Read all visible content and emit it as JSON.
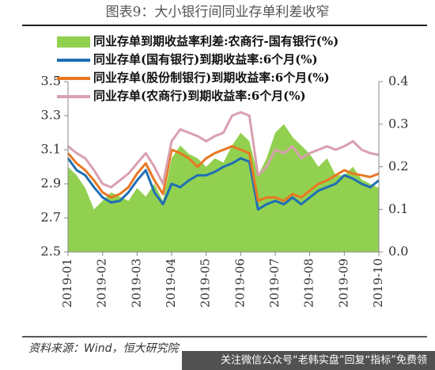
{
  "chart_data": {
    "type": "line",
    "title": "图表9：大小银行间同业存单利差收窄",
    "source": "资料来源：Wind，恒大研究院",
    "watermark": "关注微信公众号“老韩实盘”回复“指标”免费领",
    "categories": [
      "2019-01",
      null,
      null,
      null,
      "2019-02",
      null,
      null,
      null,
      "2019-03",
      null,
      null,
      null,
      "2019-04",
      null,
      null,
      null,
      "2019-05",
      null,
      null,
      null,
      "2019-06",
      null,
      null,
      null,
      "2019-07",
      null,
      null,
      null,
      "2019-08",
      null,
      null,
      null,
      "2019-09",
      null,
      null,
      null,
      "2019-10"
    ],
    "ylim": [
      2.5,
      3.5
    ],
    "yticks": [
      2.5,
      2.7,
      2.9,
      3.1,
      3.3,
      3.5
    ],
    "y2lim": [
      0,
      0.4
    ],
    "y2ticks": [
      {
        "value": 0,
        "label": "0.0"
      },
      0.1,
      0.2,
      0.3,
      0.4
    ],
    "series": [
      {
        "name": "同业存单到期收益率利差:农商行-国有银行(%)",
        "color": "#92d050",
        "kind": "area",
        "axis": "y2",
        "values": [
          0.2,
          0.18,
          0.15,
          0.1,
          0.12,
          0.14,
          0.13,
          0.12,
          0.15,
          0.13,
          0.16,
          0.12,
          0.22,
          0.25,
          0.23,
          0.22,
          0.2,
          0.22,
          0.21,
          0.25,
          0.28,
          0.26,
          0.18,
          0.22,
          0.28,
          0.3,
          0.27,
          0.25,
          0.23,
          0.2,
          0.22,
          0.18,
          0.18,
          0.2,
          0.17,
          0.16,
          0.15
        ]
      },
      {
        "name": "同业存单(国有银行)到期收益率:6个月(%)",
        "color": "#1f6fb5",
        "values": [
          3.05,
          2.98,
          2.95,
          2.88,
          2.82,
          2.79,
          2.8,
          2.85,
          2.92,
          2.98,
          2.85,
          2.78,
          2.9,
          2.88,
          2.92,
          2.95,
          2.95,
          2.97,
          3.0,
          3.02,
          3.05,
          3.03,
          2.75,
          2.78,
          2.8,
          2.78,
          2.82,
          2.78,
          2.82,
          2.86,
          2.88,
          2.9,
          2.95,
          2.93,
          2.9,
          2.88,
          2.92
        ]
      },
      {
        "name": "同业存单(股份制银行)到期收益率:6个月(%)",
        "color": "#e87722",
        "values": [
          3.08,
          3.02,
          2.98,
          2.92,
          2.85,
          2.82,
          2.84,
          2.88,
          2.96,
          3.02,
          2.92,
          2.84,
          3.1,
          3.08,
          3.05,
          3.0,
          3.05,
          3.08,
          3.1,
          3.12,
          3.1,
          3.08,
          2.8,
          2.82,
          2.82,
          2.8,
          2.84,
          2.82,
          2.86,
          2.9,
          2.92,
          2.95,
          2.98,
          2.96,
          2.95,
          2.94,
          2.96
        ]
      },
      {
        "name": "同业存单(农商行)到期收益率:6个月(%)",
        "color": "#d9a0b0",
        "values": [
          3.12,
          3.08,
          3.05,
          2.98,
          2.9,
          2.88,
          2.92,
          2.96,
          3.02,
          3.08,
          3.0,
          2.9,
          3.15,
          3.22,
          3.2,
          3.18,
          3.15,
          3.18,
          3.2,
          3.3,
          3.32,
          3.3,
          2.95,
          3.0,
          3.1,
          3.08,
          3.12,
          3.05,
          3.08,
          3.1,
          3.12,
          3.1,
          3.12,
          3.15,
          3.1,
          3.08,
          3.07
        ]
      }
    ]
  }
}
